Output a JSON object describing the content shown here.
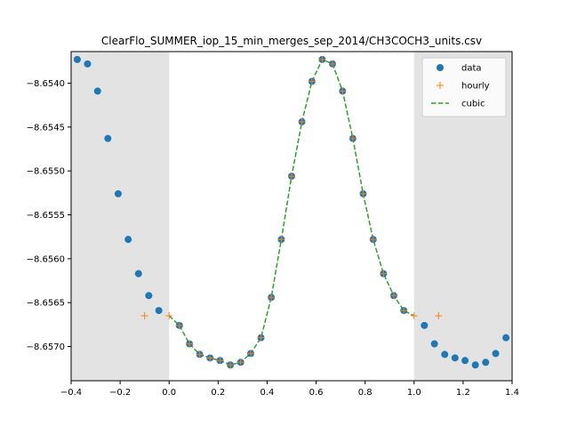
{
  "chart_data": {
    "type": "scatter",
    "title": "ClearFlo_SUMMER_iop_15_min_merges_sep_2014/CH3COCH3_units.csv",
    "xlabel": "",
    "ylabel": "",
    "xlim": [
      -0.4,
      1.4
    ],
    "ylim": [
      -8.65739,
      -8.65364
    ],
    "x_ticks": [
      -0.4,
      -0.2,
      0.0,
      0.2,
      0.4,
      0.6,
      0.8,
      1.0,
      1.2,
      1.4
    ],
    "x_tick_labels": [
      "−0.4",
      "−0.2",
      "0.0",
      "0.2",
      "0.4",
      "0.6",
      "0.8",
      "1.0",
      "1.2",
      "1.4"
    ],
    "y_ticks": [
      -8.657,
      -8.6565,
      -8.656,
      -8.6555,
      -8.655,
      -8.6545,
      -8.654
    ],
    "y_tick_labels": [
      "−8.6570",
      "−8.6565",
      "−8.6560",
      "−8.6555",
      "−8.6550",
      "−8.6545",
      "−8.6540"
    ],
    "grid": false,
    "legend_position": "top-right",
    "shaded_regions": [
      {
        "x0": -0.4,
        "x1": 0.0,
        "color": "#e3e3e3"
      },
      {
        "x0": 1.0,
        "x1": 1.4,
        "color": "#e3e3e3"
      }
    ],
    "series": [
      {
        "name": "data",
        "style": "markers-circle",
        "color": "#1f77b4",
        "x": [
          -0.375,
          -0.333,
          -0.292,
          -0.25,
          -0.208,
          -0.167,
          -0.125,
          -0.083,
          -0.042,
          0.042,
          0.083,
          0.125,
          0.167,
          0.208,
          0.25,
          0.292,
          0.333,
          0.375,
          0.417,
          0.458,
          0.5,
          0.542,
          0.583,
          0.625,
          0.667,
          0.708,
          0.75,
          0.792,
          0.833,
          0.875,
          0.917,
          0.958,
          1.042,
          1.083,
          1.125,
          1.167,
          1.208,
          1.25,
          1.292,
          1.333,
          1.375
        ],
        "y": [
          -8.65373,
          -8.65378,
          -8.65409,
          -8.65463,
          -8.65526,
          -8.65578,
          -8.65617,
          -8.65642,
          -8.65659,
          -8.65676,
          -8.65697,
          -8.65709,
          -8.65713,
          -8.65716,
          -8.65721,
          -8.65718,
          -8.65708,
          -8.6569,
          -8.65644,
          -8.65578,
          -8.65506,
          -8.65444,
          -8.65398,
          -8.65373,
          -8.65378,
          -8.65409,
          -8.65463,
          -8.65526,
          -8.65578,
          -8.65617,
          -8.65642,
          -8.65659,
          -8.65676,
          -8.65697,
          -8.65709,
          -8.65713,
          -8.65716,
          -8.65721,
          -8.65718,
          -8.65708,
          -8.6569
        ]
      },
      {
        "name": "hourly",
        "style": "markers-plus",
        "color": "#ff7f0e",
        "x": [
          -0.1,
          0.0,
          0.042,
          0.083,
          0.125,
          0.167,
          0.208,
          0.25,
          0.292,
          0.333,
          0.375,
          0.417,
          0.458,
          0.5,
          0.542,
          0.583,
          0.625,
          0.667,
          0.708,
          0.75,
          0.792,
          0.833,
          0.875,
          0.917,
          0.958,
          1.0,
          1.1
        ],
        "y": [
          -8.65665,
          -8.65665,
          -8.65676,
          -8.65697,
          -8.65709,
          -8.65713,
          -8.65716,
          -8.65721,
          -8.65718,
          -8.65708,
          -8.6569,
          -8.65644,
          -8.65578,
          -8.65506,
          -8.65444,
          -8.65398,
          -8.65373,
          -8.65378,
          -8.65409,
          -8.65463,
          -8.65526,
          -8.65578,
          -8.65617,
          -8.65642,
          -8.65659,
          -8.65665,
          -8.65665
        ]
      },
      {
        "name": "cubic",
        "style": "dashed-line",
        "color": "#2ca02c",
        "x": [
          0.0,
          0.042,
          0.083,
          0.125,
          0.167,
          0.208,
          0.25,
          0.292,
          0.333,
          0.375,
          0.417,
          0.458,
          0.5,
          0.542,
          0.583,
          0.625,
          0.667,
          0.708,
          0.75,
          0.792,
          0.833,
          0.875,
          0.917,
          0.958,
          1.0
        ],
        "y": [
          -8.65665,
          -8.65676,
          -8.65697,
          -8.65709,
          -8.65713,
          -8.65716,
          -8.65721,
          -8.65718,
          -8.65708,
          -8.6569,
          -8.65644,
          -8.65578,
          -8.65506,
          -8.65444,
          -8.65398,
          -8.65373,
          -8.65378,
          -8.65409,
          -8.65463,
          -8.65526,
          -8.65578,
          -8.65617,
          -8.65642,
          -8.65659,
          -8.65665
        ]
      }
    ]
  }
}
